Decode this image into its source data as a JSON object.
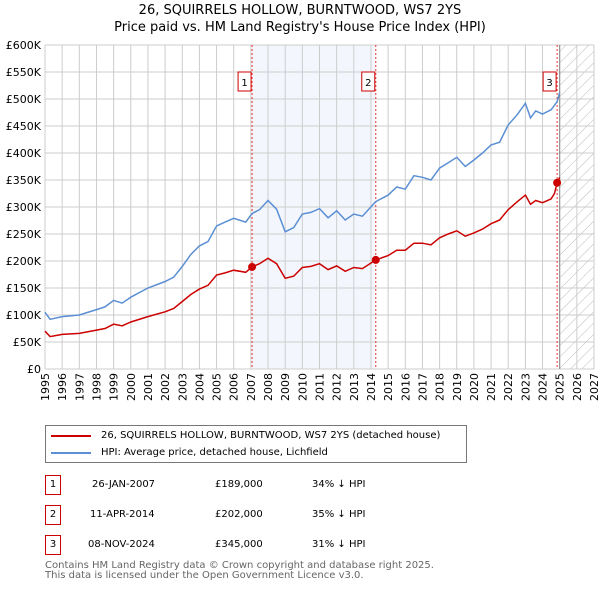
{
  "chart_data": {
    "type": "line",
    "title": "26, SQUIRRELS HOLLOW, BURNTWOOD, WS7 2YS",
    "subtitle": "Price paid vs. HM Land Registry's House Price Index (HPI)",
    "xlim": [
      1995,
      2027
    ],
    "ylim": [
      0,
      600000
    ],
    "yticks": [
      {
        "v": 0,
        "l": "£0"
      },
      {
        "v": 50000,
        "l": "£50K"
      },
      {
        "v": 100000,
        "l": "£100K"
      },
      {
        "v": 150000,
        "l": "£150K"
      },
      {
        "v": 200000,
        "l": "£200K"
      },
      {
        "v": 250000,
        "l": "£250K"
      },
      {
        "v": 300000,
        "l": "£300K"
      },
      {
        "v": 350000,
        "l": "£350K"
      },
      {
        "v": 400000,
        "l": "£400K"
      },
      {
        "v": 450000,
        "l": "£450K"
      },
      {
        "v": 500000,
        "l": "£500K"
      },
      {
        "v": 550000,
        "l": "£550K"
      },
      {
        "v": 600000,
        "l": "£600K"
      }
    ],
    "xticks": [
      "1995",
      "1996",
      "1997",
      "1998",
      "1999",
      "2000",
      "2001",
      "2002",
      "2003",
      "2004",
      "2005",
      "2006",
      "2007",
      "2008",
      "2009",
      "2010",
      "2011",
      "2012",
      "2013",
      "2014",
      "2015",
      "2016",
      "2017",
      "2018",
      "2019",
      "2020",
      "2021",
      "2022",
      "2023",
      "2024",
      "2025",
      "2026",
      "2027"
    ],
    "series": [
      {
        "name": "26, SQUIRRELS HOLLOW, BURNTWOOD, WS7 2YS (detached house)",
        "color": "#cc0000",
        "x": [
          1995,
          1995.3,
          1996,
          1997,
          1998,
          1998.5,
          1999,
          1999.5,
          2000,
          2001,
          2002,
          2002.5,
          2003,
          2003.5,
          2004,
          2004.5,
          2005,
          2005.5,
          2006,
          2006.7,
          2007.07,
          2007.5,
          2008,
          2008.5,
          2009,
          2009.5,
          2010,
          2010.5,
          2011,
          2011.5,
          2012,
          2012.5,
          2013,
          2013.5,
          2014.28,
          2015,
          2015.5,
          2016,
          2016.5,
          2017,
          2017.5,
          2018,
          2018.5,
          2019,
          2019.5,
          2020,
          2020.5,
          2021,
          2021.5,
          2022,
          2022.5,
          2023,
          2023.3,
          2023.6,
          2024,
          2024.5,
          2024.7,
          2024.85,
          2025
        ],
        "y": [
          70000,
          60000,
          64000,
          66000,
          72000,
          75000,
          83000,
          80000,
          87000,
          97000,
          106000,
          112000,
          125000,
          138000,
          148000,
          155000,
          174000,
          178000,
          183000,
          179000,
          189000,
          195000,
          205000,
          195000,
          168000,
          172000,
          188000,
          190000,
          195000,
          184000,
          191000,
          181000,
          188000,
          186000,
          202000,
          210000,
          220000,
          220000,
          233000,
          233000,
          230000,
          243000,
          250000,
          256000,
          246000,
          252000,
          259000,
          269000,
          276000,
          295000,
          309000,
          322000,
          305000,
          312000,
          308000,
          315000,
          325000,
          345000,
          355000
        ]
      },
      {
        "name": "HPI: Average price, detached house, Lichfield",
        "color": "#5b8fd4",
        "x": [
          1995,
          1995.3,
          1996,
          1997,
          1998,
          1998.5,
          1999,
          1999.5,
          2000,
          2001,
          2002,
          2002.5,
          2003,
          2003.5,
          2004,
          2004.5,
          2005,
          2005.5,
          2006,
          2006.7,
          2007.07,
          2007.5,
          2008,
          2008.5,
          2009,
          2009.5,
          2010,
          2010.5,
          2011,
          2011.5,
          2012,
          2012.5,
          2013,
          2013.5,
          2014.28,
          2015,
          2015.5,
          2016,
          2016.5,
          2017,
          2017.5,
          2018,
          2018.5,
          2019,
          2019.5,
          2020,
          2020.5,
          2021,
          2021.5,
          2022,
          2022.5,
          2023,
          2023.3,
          2023.6,
          2024,
          2024.5,
          2024.85,
          2025
        ],
        "y": [
          105000,
          92000,
          97000,
          100000,
          110000,
          115000,
          127000,
          122000,
          133000,
          150000,
          162000,
          170000,
          190000,
          212000,
          228000,
          236000,
          265000,
          272000,
          279000,
          272000,
          288000,
          295000,
          312000,
          296000,
          254000,
          262000,
          287000,
          290000,
          297000,
          280000,
          293000,
          276000,
          287000,
          283000,
          310000,
          322000,
          337000,
          333000,
          358000,
          355000,
          350000,
          372000,
          382000,
          392000,
          375000,
          387000,
          400000,
          415000,
          420000,
          452000,
          470000,
          492000,
          465000,
          478000,
          472000,
          480000,
          495000,
          512000
        ]
      }
    ],
    "sales": [
      {
        "n": "1",
        "x": 2007.07,
        "y": 189000,
        "date": "26-JAN-2007",
        "price": "£189,000",
        "hpi": "34% ↓ HPI"
      },
      {
        "n": "2",
        "x": 2014.28,
        "y": 202000,
        "date": "11-APR-2014",
        "price": "£202,000",
        "hpi": "35% ↓ HPI"
      },
      {
        "n": "3",
        "x": 2024.85,
        "y": 345000,
        "date": "08-NOV-2024",
        "price": "£345,000",
        "hpi": "31% ↓ HPI"
      }
    ],
    "shaded_range": [
      2007.07,
      2014.28
    ],
    "forecast_hatch_from": 2025,
    "grid": true,
    "legend_placement": "below"
  },
  "footer": [
    "Contains HM Land Registry data © Crown copyright and database right 2025.",
    "This data is licensed under the Open Government Licence v3.0."
  ]
}
